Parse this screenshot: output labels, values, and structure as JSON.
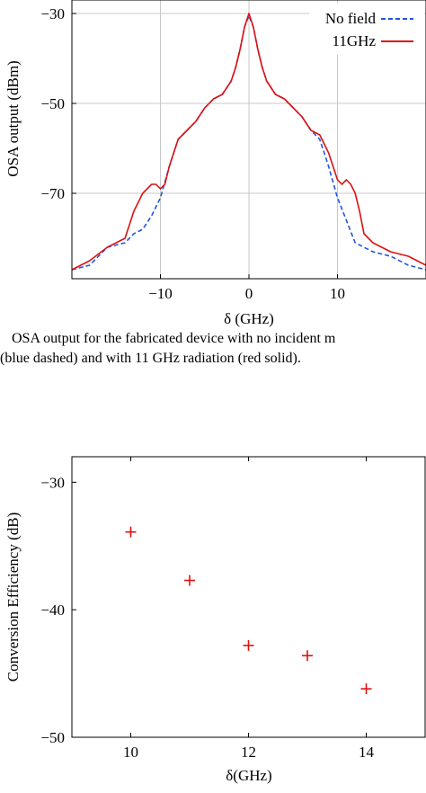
{
  "chart_data": [
    {
      "type": "line",
      "xlabel": "δ (GHz)",
      "ylabel": "OSA output (dBm)",
      "xlim": [
        -20,
        20
      ],
      "ylim": [
        -89,
        -27
      ],
      "xticks": [
        -10,
        0,
        10
      ],
      "xtick_labels": [
        "−10",
        "0",
        "10"
      ],
      "yticks": [
        -30,
        -50,
        -70
      ],
      "ytick_labels": [
        "−30",
        "−50",
        "−70"
      ],
      "grid": true,
      "legend_position": "top-right",
      "series": [
        {
          "name": "No field",
          "color": "#2255dd",
          "style": "dashed",
          "x": [
            -20,
            -18,
            -16,
            -14,
            -13,
            -12,
            -11,
            -10,
            -9,
            -8,
            -7,
            -6,
            -5,
            -4,
            -3,
            -2,
            -1.5,
            -1,
            -0.5,
            0,
            0.5,
            1,
            1.5,
            2,
            3,
            4,
            5,
            6,
            7,
            8,
            9,
            10,
            11,
            12,
            13,
            14,
            16,
            18,
            20
          ],
          "y": [
            -87,
            -86,
            -82,
            -81,
            -79,
            -78,
            -75,
            -71,
            -64,
            -58,
            -56,
            -54,
            -51,
            -49,
            -48,
            -45,
            -42,
            -38,
            -33,
            -30.5,
            -33,
            -38,
            -42,
            -45,
            -48,
            -49,
            -51,
            -53,
            -56,
            -58,
            -64,
            -71,
            -76,
            -81,
            -82,
            -83,
            -84,
            -86,
            -87
          ]
        },
        {
          "name": "11GHz",
          "color": "#dd1111",
          "style": "solid",
          "x": [
            -20,
            -18,
            -16,
            -14,
            -13,
            -12,
            -11,
            -10.5,
            -10,
            -9.5,
            -9,
            -8,
            -7,
            -6,
            -5,
            -4,
            -3,
            -2,
            -1.5,
            -1,
            -0.5,
            0,
            0.5,
            1,
            1.5,
            2,
            3,
            4,
            5,
            6,
            7,
            8,
            9,
            10,
            10.5,
            11,
            11.5,
            12,
            12.5,
            13,
            14,
            16,
            18,
            20
          ],
          "y": [
            -87,
            -85,
            -82,
            -80,
            -74,
            -70,
            -68,
            -68,
            -69,
            -68,
            -64,
            -58,
            -56,
            -54,
            -51,
            -49,
            -48,
            -45,
            -42,
            -38,
            -33,
            -30,
            -33,
            -38,
            -42,
            -45,
            -48,
            -49,
            -51,
            -53,
            -56,
            -57,
            -61,
            -67,
            -68,
            -67,
            -68,
            -70,
            -74,
            -79,
            -81,
            -83,
            -84,
            -86
          ]
        }
      ]
    },
    {
      "type": "scatter",
      "xlabel": "δ(GHz)",
      "ylabel": "Conversion Efficiency (dB)",
      "xlim": [
        9,
        15
      ],
      "ylim": [
        -50,
        -28
      ],
      "xticks": [
        10,
        12,
        14
      ],
      "xtick_labels": [
        "10",
        "12",
        "14"
      ],
      "yticks": [
        -30,
        -40,
        -50
      ],
      "ytick_labels": [
        "−30",
        "−40",
        "−50"
      ],
      "grid": false,
      "series": [
        {
          "color": "#dd1111",
          "marker": "+",
          "x": [
            10,
            11,
            12,
            13,
            14
          ],
          "y": [
            -33.9,
            -37.7,
            -42.8,
            -43.6,
            -46.2
          ]
        }
      ]
    }
  ],
  "caption": {
    "line1": "OSA output for the fabricated device with no incident m",
    "line2": "(blue dashed) and with 11 GHz radiation (red solid)."
  }
}
